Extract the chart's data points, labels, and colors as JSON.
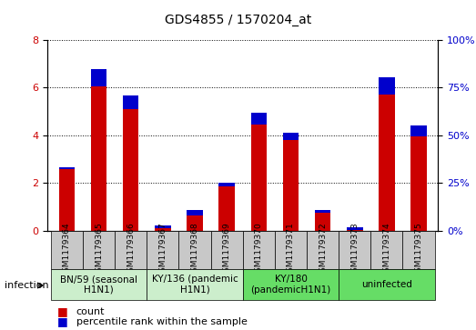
{
  "title": "GDS4855 / 1570204_at",
  "samples": [
    "GSM1179364",
    "GSM1179365",
    "GSM1179366",
    "GSM1179367",
    "GSM1179368",
    "GSM1179369",
    "GSM1179370",
    "GSM1179371",
    "GSM1179372",
    "GSM1179373",
    "GSM1179374",
    "GSM1179375"
  ],
  "count_values": [
    2.6,
    6.05,
    5.1,
    0.12,
    0.65,
    1.85,
    4.45,
    3.8,
    0.75,
    0.05,
    5.7,
    3.95
  ],
  "percentile_values_scaled": [
    0.08,
    0.72,
    0.55,
    0.12,
    0.22,
    0.15,
    0.5,
    0.3,
    0.12,
    0.1,
    0.72,
    0.45
  ],
  "ylim_left": [
    0,
    8
  ],
  "ylim_right": [
    0,
    100
  ],
  "yticks_left": [
    0,
    2,
    4,
    6,
    8
  ],
  "yticks_right": [
    0,
    25,
    50,
    75,
    100
  ],
  "groups": [
    {
      "label": "BN/59 (seasonal\nH1N1)",
      "start": 0,
      "end": 3,
      "color": "#cceecc"
    },
    {
      "label": "KY/136 (pandemic\nH1N1)",
      "start": 3,
      "end": 6,
      "color": "#cceecc"
    },
    {
      "label": "KY/180\n(pandemicH1N1)",
      "start": 6,
      "end": 9,
      "color": "#66dd66"
    },
    {
      "label": "uninfected",
      "start": 9,
      "end": 12,
      "color": "#66dd66"
    }
  ],
  "bar_color_red": "#cc0000",
  "bar_color_blue": "#0000cc",
  "bar_width": 0.5,
  "cell_bg": "#c8c8c8",
  "infection_label": "infection",
  "legend_count": "count",
  "legend_percentile": "percentile rank within the sample"
}
